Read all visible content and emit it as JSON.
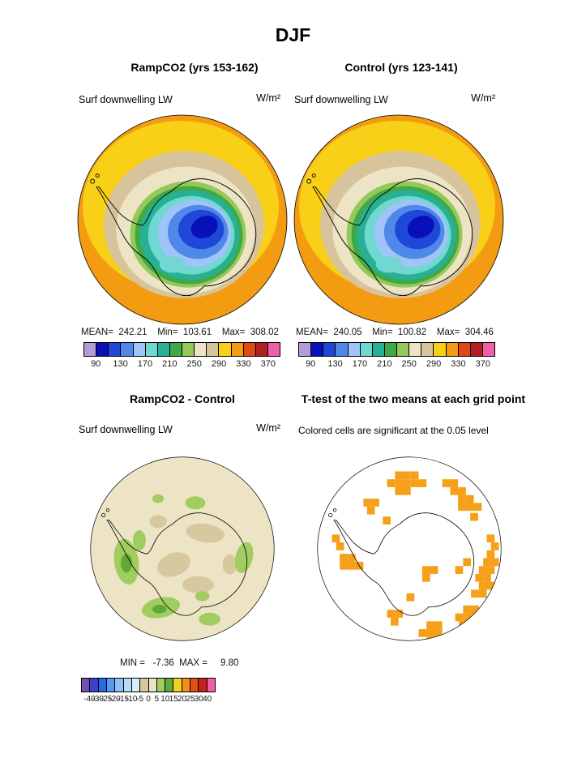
{
  "chart_data": {
    "type": "contour-map-grid",
    "figure_title": "DJF",
    "projection": "south polar stereographic (Antarctica)",
    "panels": [
      {
        "id": "rampco2",
        "title": "RampCO2 (yrs 153-162)",
        "variable": "Surf downwelling LW",
        "units": "W/m²",
        "stats_text": "MEAN=  242.21    Min=  103.61    Max=  308.02",
        "mean": 242.21,
        "min": 103.61,
        "max": 308.02,
        "colorbar": "lw"
      },
      {
        "id": "control",
        "title": "Control (yrs 123-141)",
        "variable": "Surf downwelling LW",
        "units": "W/m²",
        "stats_text": "MEAN=  240.05    Min=  100.82    Max=  304.46",
        "mean": 240.05,
        "min": 100.82,
        "max": 304.46,
        "colorbar": "lw"
      },
      {
        "id": "difference",
        "title": "RampCO2 - Control",
        "variable": "Surf downwelling LW",
        "units": "W/m²",
        "stats_text": "MIN =   -7.36  MAX =     9.80",
        "min": -7.36,
        "max": 9.8,
        "colorbar": "diff"
      },
      {
        "id": "ttest",
        "title": "T-test of the two means at each grid point",
        "subtitle": "Colored cells are significant at the 0.05 level",
        "significance_level": 0.05,
        "significant_color": "#F5A018",
        "cells": [
          [
            110,
            22
          ],
          [
            121,
            22
          ],
          [
            132,
            22
          ],
          [
            99,
            33
          ],
          [
            110,
            33
          ],
          [
            121,
            33
          ],
          [
            132,
            33
          ],
          [
            143,
            33
          ],
          [
            110,
            44
          ],
          [
            121,
            44
          ],
          [
            176,
            33
          ],
          [
            187,
            33
          ],
          [
            187,
            44
          ],
          [
            198,
            44
          ],
          [
            198,
            55
          ],
          [
            209,
            55
          ],
          [
            198,
            66
          ],
          [
            209,
            66
          ],
          [
            220,
            66
          ],
          [
            215,
            80
          ],
          [
            238,
            110
          ],
          [
            244,
            121
          ],
          [
            238,
            132
          ],
          [
            233,
            143
          ],
          [
            244,
            143
          ],
          [
            227,
            154
          ],
          [
            238,
            154
          ],
          [
            222,
            165
          ],
          [
            233,
            165
          ],
          [
            227,
            176
          ],
          [
            238,
            176
          ],
          [
            216,
            187
          ],
          [
            227,
            187
          ],
          [
            205,
            143
          ],
          [
            194,
            154
          ],
          [
            205,
            209
          ],
          [
            216,
            209
          ],
          [
            194,
            220
          ],
          [
            205,
            220
          ],
          [
            216,
            220
          ],
          [
            199,
            231
          ],
          [
            210,
            231
          ],
          [
            154,
            231
          ],
          [
            165,
            231
          ],
          [
            143,
            242
          ],
          [
            154,
            242
          ],
          [
            165,
            242
          ],
          [
            154,
            253
          ],
          [
            99,
            215
          ],
          [
            110,
            215
          ],
          [
            104,
            226
          ],
          [
            33,
            137
          ],
          [
            44,
            137
          ],
          [
            33,
            148
          ],
          [
            44,
            148
          ],
          [
            55,
            148
          ],
          [
            22,
            110
          ],
          [
            28,
            121
          ],
          [
            66,
            60
          ],
          [
            77,
            60
          ],
          [
            71,
            71
          ],
          [
            93,
            85
          ],
          [
            148,
            154
          ],
          [
            159,
            154
          ],
          [
            148,
            165
          ],
          [
            126,
            192
          ]
        ]
      }
    ],
    "colorbars": {
      "lw": {
        "units": "W/m²",
        "range": [
          70,
          390
        ],
        "contour_interval": 20,
        "tick_labels": [
          "90",
          "130",
          "170",
          "210",
          "250",
          "290",
          "330",
          "370"
        ],
        "colors": [
          "#B49CD8",
          "#0810B8",
          "#2048D8",
          "#5088E8",
          "#A0C4F8",
          "#70D8D0",
          "#28B094",
          "#40A848",
          "#94C858",
          "#ECE4C4",
          "#D8C49C",
          "#F8D018",
          "#F39C12",
          "#E04818",
          "#B02020",
          "#F060A8"
        ]
      },
      "diff": {
        "units": "W/m²",
        "tick_labels": [
          "-40",
          "-30",
          "-25",
          "-20",
          "-15",
          "-10",
          "-5",
          "0",
          "5",
          "10",
          "15",
          "20",
          "25",
          "30",
          "40"
        ],
        "colors": [
          "#7050B0",
          "#4040C8",
          "#2868E0",
          "#5898F0",
          "#90C0F8",
          "#B8DCF8",
          "#D8EEF8",
          "#D8C8A0",
          "#ECE4C4",
          "#A0CC60",
          "#60A838",
          "#F0D020",
          "#F09018",
          "#E05010",
          "#C82020",
          "#F060A8"
        ]
      }
    }
  }
}
